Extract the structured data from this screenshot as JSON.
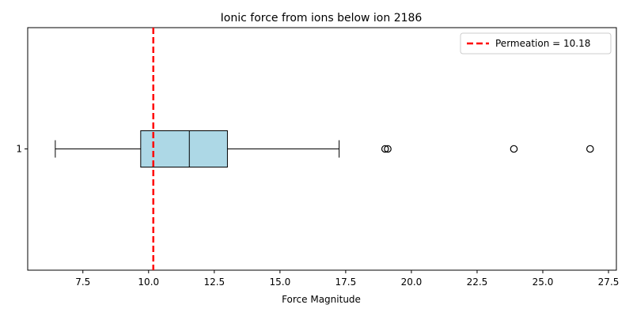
{
  "chart_data": {
    "type": "boxplot",
    "orientation": "horizontal",
    "title": "Ionic force from ions below ion 2186",
    "xlabel": "Force Magnitude",
    "ylabel": "",
    "xlim": [
      5.4,
      27.8
    ],
    "x_ticks": [
      7.5,
      10.0,
      12.5,
      15.0,
      17.5,
      20.0,
      22.5,
      25.0,
      27.5
    ],
    "y_ticks": [
      "1"
    ],
    "grid": false,
    "box": {
      "category": "1",
      "whisker_low": 6.45,
      "q1": 9.7,
      "median": 11.55,
      "q3": 13.0,
      "whisker_high": 17.25,
      "outliers": [
        19.0,
        19.1,
        23.9,
        26.8
      ],
      "fill_color": "#add8e6",
      "edge_color": "#000000"
    },
    "reference_line": {
      "value": 10.18,
      "label": "Permeation = 10.18",
      "color": "#ff0000",
      "style": "dashed"
    },
    "legend": {
      "placement": "top-right",
      "entries": [
        "Permeation = 10.18"
      ]
    }
  }
}
